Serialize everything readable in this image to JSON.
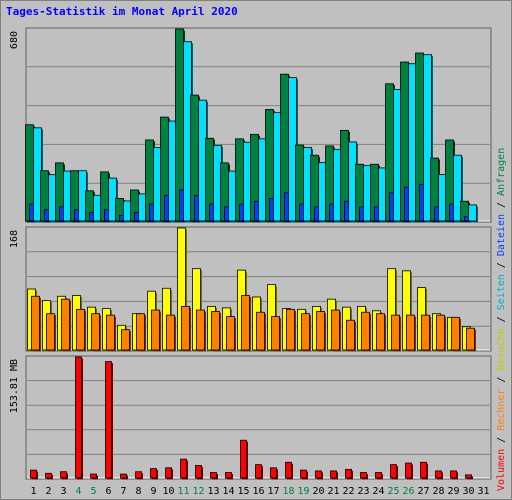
{
  "page": {
    "title": "Tages-Statistik im Monat April 2020"
  },
  "colors": {
    "anfragen": "#008040",
    "dateien": "#0040ff",
    "seiten": "#00e0ff",
    "besuche": "#ffff00",
    "rechner": "#ff8000",
    "volumen": "#ff0000",
    "weekend": "#008040",
    "weekday": "#000000",
    "plot_bg": "#c0c0c0",
    "grid": "#808080"
  },
  "chart_data": {
    "type": "bar",
    "title": "Tages-Statistik im Monat April 2020",
    "grid": true,
    "legend_placement": "right (vertical)",
    "x": {
      "categories": [
        "1",
        "2",
        "3",
        "4",
        "5",
        "6",
        "7",
        "8",
        "9",
        "10",
        "11",
        "12",
        "13",
        "14",
        "15",
        "16",
        "17",
        "18",
        "19",
        "20",
        "21",
        "22",
        "23",
        "24",
        "25",
        "26",
        "27",
        "28",
        "29",
        "30",
        "31"
      ],
      "weekend_days": [
        "4",
        "5",
        "11",
        "12",
        "18",
        "19",
        "25",
        "26"
      ]
    },
    "panels": [
      {
        "id": "top",
        "ymax_label": "680",
        "ylim": [
          0,
          680
        ],
        "legend": [
          "Anfragen",
          "Dateien",
          "Seiten"
        ],
        "series": [
          {
            "name": "Anfragen",
            "color_key": "anfragen",
            "values": [
              341,
              178,
              206,
              178,
              107,
              174,
              80,
              110,
              287,
              368,
              680,
              446,
              293,
              206,
              291,
              307,
              395,
              520,
              269,
              233,
              266,
              321,
              201,
              201,
              486,
              563,
              595,
              223,
              287,
              70,
              0
            ]
          },
          {
            "name": "Dateien",
            "color_key": "dateien",
            "values": [
              60,
              40,
              50,
              40,
              30,
              40,
              20,
              30,
              60,
              90,
              110,
              90,
              60,
              50,
              60,
              70,
              80,
              100,
              60,
              50,
              60,
              70,
              50,
              50,
              100,
              120,
              130,
              50,
              60,
              15,
              0
            ]
          },
          {
            "name": "Seiten",
            "color_key": "seiten",
            "values": [
              330,
              164,
              177,
              178,
              91,
              152,
              71,
              96,
              260,
              354,
              635,
              428,
              268,
              177,
              279,
              291,
              384,
              508,
              260,
              207,
              253,
              280,
              197,
              188,
              466,
              557,
              589,
              165,
              233,
              57,
              0
            ]
          }
        ]
      },
      {
        "id": "middle",
        "ymax_label": "168",
        "ylim": [
          0,
          168
        ],
        "legend": [
          "Besuche",
          "Rechner"
        ],
        "series": [
          {
            "name": "Besuche",
            "color_key": "besuche",
            "values": [
              84,
              68,
              74,
              75,
              59,
              57,
              34,
              50,
              81,
              85,
              168,
              112,
              60,
              58,
              110,
              73,
              90,
              57,
              56,
              60,
              70,
              59,
              60,
              54,
              112,
              109,
              86,
              50,
              45,
              32,
              0
            ]
          },
          {
            "name": "Rechner",
            "color_key": "rechner",
            "values": [
              74,
              50,
              70,
              56,
              50,
              48,
              28,
              50,
              55,
              48,
              60,
              55,
              53,
              46,
              75,
              52,
              46,
              56,
              50,
              53,
              55,
              41,
              52,
              50,
              48,
              48,
              48,
              48,
              45,
              30,
              0
            ]
          }
        ]
      },
      {
        "id": "bottom",
        "ymax_label": "153.81 MB",
        "ylim": [
          0,
          153.81
        ],
        "legend": [
          "Volumen"
        ],
        "series": [
          {
            "name": "Volumen",
            "color_key": "volumen",
            "values": [
              10,
              6,
              8,
              153.81,
              5,
              148,
              5,
              8,
              12,
              13,
              24,
              16,
              7,
              7,
              48,
              17,
              13,
              20,
              10,
              9,
              9,
              11,
              7,
              7,
              17,
              19,
              20,
              9,
              9,
              4,
              0
            ]
          }
        ]
      }
    ]
  },
  "legend_text": {
    "slash": " / ",
    "anfragen": "Anfragen",
    "dateien": "Dateien",
    "seiten": "Seiten",
    "besuche": "Besuche",
    "rechner": "Rechner",
    "volumen": "Volumen"
  }
}
